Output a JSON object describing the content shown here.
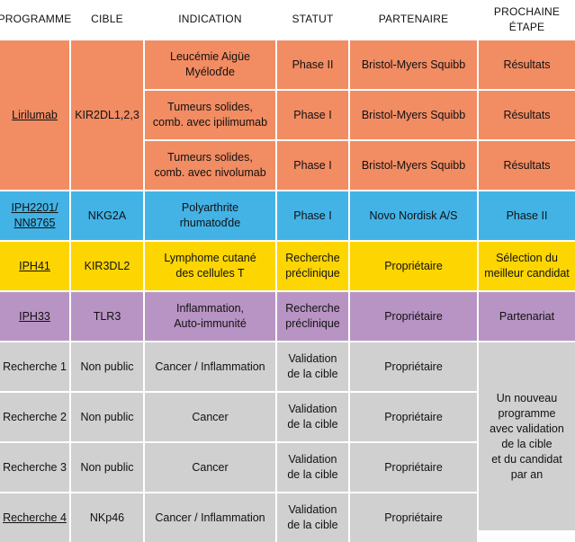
{
  "colors": {
    "orange": "#F28C63",
    "blue": "#43B3E6",
    "yellow": "#FDD500",
    "purple": "#B894C4",
    "gray": "#D0D0D0"
  },
  "headers": [
    "PROGRAMME",
    "CIBLE",
    "INDICATION",
    "STATUT",
    "PARTENAIRE",
    "PROCHAINE ÉTAPE"
  ],
  "groups": [
    {
      "color": "orange",
      "programme": "Lirilumab",
      "cible": "KIR2DL1,2,3",
      "rows": [
        {
          "indication": "Leucémie Aigüe Myéloďde",
          "statut": "Phase II",
          "partenaire": "Bristol-Myers Squibb",
          "etape": "Résultats"
        },
        {
          "indication": "Tumeurs solides,\ncomb. avec ipilimumab",
          "statut": "Phase I",
          "partenaire": "Bristol-Myers Squibb",
          "etape": "Résultats"
        },
        {
          "indication": "Tumeurs solides,\ncomb. avec nivolumab",
          "statut": "Phase I",
          "partenaire": "Bristol-Myers Squibb",
          "etape": "Résultats"
        }
      ]
    },
    {
      "color": "blue",
      "programme": "IPH2201/\nNN8765",
      "cible": "NKG2A",
      "rows": [
        {
          "indication": "Polyarthrite\nrhumatoďde",
          "statut": "Phase I",
          "partenaire": "Novo Nordisk A/S",
          "etape": "Phase II"
        }
      ]
    },
    {
      "color": "yellow",
      "programme": "IPH41",
      "cible": "KIR3DL2",
      "rows": [
        {
          "indication": "Lymphome cutané\ndes cellules T",
          "statut": "Recherche\npréclinique",
          "partenaire": "Propriétaire",
          "etape": "Sélection du\nmeilleur candidat"
        }
      ]
    },
    {
      "color": "purple",
      "programme": "IPH33",
      "cible": "TLR3",
      "rows": [
        {
          "indication": "Inflammation,\nAuto-immunité",
          "statut": "Recherche\npréclinique",
          "partenaire": "Propriétaire",
          "etape": "Partenariat"
        }
      ]
    }
  ],
  "research": {
    "color": "gray",
    "rows": [
      {
        "programme": "Recherche 1",
        "cible": "Non public",
        "indication": "Cancer / Inflammation",
        "statut": "Validation\nde la cible",
        "partenaire": "Propriétaire",
        "link": false
      },
      {
        "programme": "Recherche 2",
        "cible": "Non public",
        "indication": "Cancer",
        "statut": "Validation\nde la cible",
        "partenaire": "Propriétaire",
        "link": false
      },
      {
        "programme": "Recherche 3",
        "cible": "Non public",
        "indication": "Cancer",
        "statut": "Validation\nde la cible",
        "partenaire": "Propriétaire",
        "link": false
      },
      {
        "programme": "Recherche 4",
        "cible": "NKp46",
        "indication": "Cancer / Inflammation",
        "statut": "Validation\nde la cible",
        "partenaire": "Propriétaire",
        "link": true
      }
    ],
    "etape": "Un nouveau\nprogramme\navec validation\nde la cible\net du candidat\npar an"
  }
}
